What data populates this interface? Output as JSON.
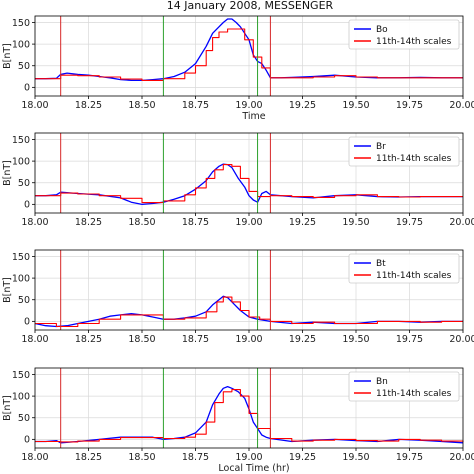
{
  "figure": {
    "title": "14 January 2008, MESSENGER",
    "xlabel_bottom": "Local Time (hr)"
  },
  "chart_data": [
    {
      "type": "line",
      "panel": "Bo",
      "xlabel": "Time",
      "ylabel": "B[nT]",
      "xlim": [
        18.0,
        20.0
      ],
      "ylim": [
        -20,
        165
      ],
      "xticks": [
        "18.00",
        "18.25",
        "18.50",
        "18.75",
        "19.00",
        "19.25",
        "19.50",
        "19.75",
        "20.00"
      ],
      "yticks": [
        "0",
        "50",
        "100",
        "150"
      ],
      "grid": true,
      "legend": "top-right",
      "red_lines": [
        18.12,
        19.1
      ],
      "green_lines": [
        18.6,
        19.04
      ],
      "series": [
        {
          "name": "Bo",
          "color": "#0000ff",
          "x": [
            18.0,
            18.05,
            18.1,
            18.12,
            18.15,
            18.2,
            18.25,
            18.3,
            18.35,
            18.4,
            18.45,
            18.5,
            18.55,
            18.6,
            18.65,
            18.7,
            18.75,
            18.8,
            18.83,
            18.86,
            18.88,
            18.9,
            18.92,
            18.94,
            18.96,
            18.98,
            19.0,
            19.02,
            19.04,
            19.06,
            19.08,
            19.1,
            19.15,
            19.2,
            19.3,
            19.4,
            19.5,
            19.6,
            19.7,
            19.8,
            19.9,
            20.0
          ],
          "y": [
            20,
            20,
            21,
            30,
            33,
            30,
            28,
            25,
            22,
            18,
            16,
            16,
            18,
            20,
            25,
            35,
            55,
            95,
            125,
            140,
            150,
            158,
            158,
            150,
            140,
            125,
            110,
            75,
            60,
            55,
            40,
            22,
            22,
            23,
            25,
            28,
            24,
            22,
            22,
            23,
            22,
            22
          ]
        },
        {
          "name": "11th-14th scales",
          "color": "#ff0000",
          "x": [
            18.0,
            18.12,
            18.2,
            18.3,
            18.4,
            18.5,
            18.6,
            18.7,
            18.75,
            18.8,
            18.83,
            18.86,
            18.9,
            18.94,
            18.98,
            19.02,
            19.06,
            19.1,
            19.2,
            19.3,
            19.4,
            19.5,
            19.6,
            19.7,
            19.8,
            19.9,
            20.0
          ],
          "y": [
            20,
            28,
            27,
            24,
            19,
            16,
            20,
            33,
            50,
            85,
            115,
            128,
            135,
            135,
            110,
            70,
            45,
            22,
            22,
            24,
            27,
            24,
            22,
            22,
            22,
            22,
            22
          ]
        }
      ]
    },
    {
      "type": "line",
      "panel": "Br",
      "ylabel": "B[nT]",
      "xlim": [
        18.0,
        20.0
      ],
      "ylim": [
        -20,
        165
      ],
      "xticks": [
        "18.00",
        "18.25",
        "18.50",
        "18.75",
        "19.00",
        "19.25",
        "19.50",
        "19.75",
        "20.00"
      ],
      "yticks": [
        "0",
        "50",
        "100",
        "150"
      ],
      "grid": true,
      "legend": "top-right",
      "red_lines": [
        18.12,
        19.1
      ],
      "green_lines": [
        18.6,
        19.04
      ],
      "series": [
        {
          "name": "Br",
          "color": "#0000ff",
          "x": [
            18.0,
            18.05,
            18.1,
            18.12,
            18.2,
            18.3,
            18.4,
            18.45,
            18.5,
            18.55,
            18.6,
            18.65,
            18.7,
            18.75,
            18.8,
            18.83,
            18.86,
            18.88,
            18.9,
            18.92,
            18.95,
            18.98,
            19.0,
            19.02,
            19.04,
            19.06,
            19.08,
            19.1,
            19.2,
            19.3,
            19.4,
            19.5,
            19.6,
            19.7,
            19.8,
            19.9,
            20.0
          ],
          "y": [
            20,
            20,
            22,
            28,
            25,
            22,
            15,
            5,
            0,
            2,
            5,
            12,
            20,
            35,
            55,
            75,
            88,
            93,
            92,
            85,
            60,
            40,
            20,
            10,
            5,
            25,
            30,
            22,
            18,
            15,
            20,
            22,
            18,
            17,
            18,
            18,
            18
          ]
        },
        {
          "name": "11th-14th scales",
          "color": "#ff0000",
          "x": [
            18.0,
            18.12,
            18.2,
            18.3,
            18.4,
            18.5,
            18.6,
            18.7,
            18.75,
            18.8,
            18.84,
            18.88,
            18.92,
            18.96,
            19.0,
            19.04,
            19.1,
            19.2,
            19.3,
            19.4,
            19.5,
            19.6,
            19.7,
            19.8,
            19.9,
            20.0
          ],
          "y": [
            20,
            26,
            24,
            20,
            14,
            4,
            8,
            22,
            38,
            60,
            80,
            92,
            88,
            60,
            30,
            18,
            20,
            18,
            16,
            20,
            22,
            18,
            17,
            18,
            18,
            18
          ]
        }
      ]
    },
    {
      "type": "line",
      "panel": "Bt",
      "ylabel": "B[nT]",
      "xlim": [
        18.0,
        20.0
      ],
      "ylim": [
        -20,
        165
      ],
      "xticks": [
        "18.00",
        "18.25",
        "18.50",
        "18.75",
        "19.00",
        "19.25",
        "19.50",
        "19.75",
        "20.00"
      ],
      "yticks": [
        "0",
        "50",
        "100",
        "150"
      ],
      "grid": true,
      "legend": "top-right",
      "red_lines": [
        18.12,
        19.1
      ],
      "green_lines": [
        18.6,
        19.04
      ],
      "series": [
        {
          "name": "Bt",
          "color": "#0000ff",
          "x": [
            18.0,
            18.05,
            18.1,
            18.15,
            18.2,
            18.25,
            18.3,
            18.35,
            18.4,
            18.45,
            18.5,
            18.55,
            18.6,
            18.65,
            18.7,
            18.75,
            18.8,
            18.83,
            18.86,
            18.88,
            18.9,
            18.93,
            18.96,
            19.0,
            19.04,
            19.1,
            19.2,
            19.3,
            19.4,
            19.5,
            19.6,
            19.7,
            19.8,
            19.9,
            20.0
          ],
          "y": [
            -5,
            -10,
            -12,
            -10,
            -5,
            0,
            5,
            12,
            15,
            18,
            15,
            10,
            5,
            5,
            8,
            12,
            22,
            38,
            50,
            58,
            55,
            40,
            25,
            10,
            5,
            0,
            -5,
            -2,
            -5,
            -5,
            0,
            0,
            -2,
            0,
            0
          ]
        },
        {
          "name": "11th-14th scales",
          "color": "#ff0000",
          "x": [
            18.0,
            18.1,
            18.2,
            18.3,
            18.4,
            18.5,
            18.6,
            18.7,
            18.8,
            18.85,
            18.88,
            18.92,
            18.96,
            19.0,
            19.05,
            19.1,
            19.2,
            19.3,
            19.4,
            19.5,
            19.6,
            19.7,
            19.8,
            19.9,
            20.0
          ],
          "y": [
            -5,
            -12,
            -5,
            5,
            15,
            15,
            5,
            8,
            22,
            45,
            56,
            45,
            25,
            10,
            5,
            0,
            -5,
            -2,
            -5,
            -5,
            0,
            0,
            -2,
            0,
            0
          ]
        }
      ]
    },
    {
      "type": "line",
      "panel": "Bn",
      "xlabel": "Local Time (hr)",
      "ylabel": "B[nT]",
      "xlim": [
        18.0,
        20.0
      ],
      "ylim": [
        -20,
        165
      ],
      "xticks": [
        "18.00",
        "18.25",
        "18.50",
        "18.75",
        "19.00",
        "19.25",
        "19.50",
        "19.75",
        "20.00"
      ],
      "yticks": [
        "0",
        "50",
        "100",
        "150"
      ],
      "grid": true,
      "legend": "top-right",
      "red_lines": [
        18.12,
        19.1
      ],
      "green_lines": [
        18.6,
        19.04
      ],
      "series": [
        {
          "name": "Bn",
          "color": "#0000ff",
          "x": [
            18.0,
            18.05,
            18.1,
            18.12,
            18.2,
            18.3,
            18.4,
            18.5,
            18.55,
            18.6,
            18.65,
            18.7,
            18.75,
            18.8,
            18.83,
            18.86,
            18.88,
            18.9,
            18.92,
            18.95,
            18.98,
            19.0,
            19.02,
            19.04,
            19.06,
            19.08,
            19.1,
            19.2,
            19.3,
            19.4,
            19.5,
            19.6,
            19.7,
            19.8,
            19.9,
            20.0
          ],
          "y": [
            -5,
            -5,
            -3,
            -8,
            -5,
            0,
            5,
            5,
            5,
            0,
            2,
            5,
            15,
            40,
            80,
            105,
            118,
            122,
            118,
            110,
            95,
            70,
            40,
            25,
            10,
            5,
            2,
            -5,
            -2,
            0,
            -3,
            -5,
            0,
            -2,
            -5,
            -8
          ]
        },
        {
          "name": "11th-14th scales",
          "color": "#ff0000",
          "x": [
            18.0,
            18.12,
            18.2,
            18.3,
            18.4,
            18.5,
            18.6,
            18.7,
            18.75,
            18.8,
            18.84,
            18.88,
            18.92,
            18.96,
            19.0,
            19.04,
            19.1,
            19.2,
            19.3,
            19.4,
            19.5,
            19.6,
            19.7,
            19.8,
            19.9,
            20.0
          ],
          "y": [
            -5,
            -6,
            -4,
            0,
            4,
            4,
            2,
            5,
            12,
            40,
            85,
            110,
            115,
            100,
            60,
            25,
            2,
            -4,
            -2,
            0,
            -3,
            -4,
            0,
            -2,
            -4,
            -6
          ]
        }
      ]
    }
  ]
}
